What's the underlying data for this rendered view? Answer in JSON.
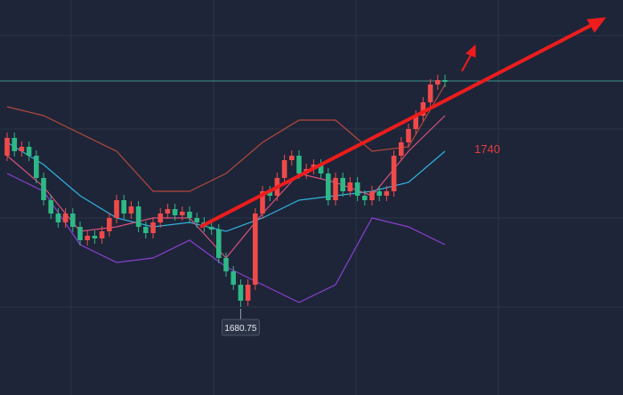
{
  "chart_data": {
    "type": "candlestick",
    "ylim": [
      1656,
      1767
    ],
    "up_color": "#ef4a4a",
    "down_color": "#2eb886",
    "ohlc": [
      [
        1723.25,
        1729.75,
        1721.75,
        1728.25
      ],
      [
        1728.25,
        1729.75,
        1723,
        1724.5
      ],
      [
        1724.5,
        1727.25,
        1723,
        1725.75
      ],
      [
        1725.75,
        1727.25,
        1721.75,
        1723.25
      ],
      [
        1723.25,
        1724.75,
        1715.5,
        1717
      ],
      [
        1717,
        1718.5,
        1709.25,
        1710.75
      ],
      [
        1710.75,
        1712.25,
        1705.5,
        1707
      ],
      [
        1707,
        1708.5,
        1703,
        1704.5
      ],
      [
        1704.5,
        1708.5,
        1703,
        1707
      ],
      [
        1707,
        1708.5,
        1701.75,
        1703.25
      ],
      [
        1703.25,
        1704.75,
        1698,
        1699.5
      ],
      [
        1699.5,
        1702.25,
        1698,
        1700.75
      ],
      [
        1700.75,
        1702.25,
        1698.5,
        1700
      ],
      [
        1700,
        1703.5,
        1698.5,
        1702
      ],
      [
        1702,
        1707.25,
        1700.5,
        1705.75
      ],
      [
        1705.75,
        1712.25,
        1704.25,
        1710.75
      ],
      [
        1710.75,
        1712.25,
        1705.5,
        1707
      ],
      [
        1707,
        1710.5,
        1705.5,
        1709
      ],
      [
        1709,
        1710.5,
        1701.75,
        1703.25
      ],
      [
        1703.25,
        1704.75,
        1700,
        1701.5
      ],
      [
        1701.5,
        1706,
        1700,
        1704.5
      ],
      [
        1704.5,
        1708.5,
        1703,
        1707
      ],
      [
        1707,
        1709.75,
        1705.5,
        1708.25
      ],
      [
        1708.25,
        1709.75,
        1705,
        1706.5
      ],
      [
        1706.5,
        1709,
        1705,
        1707.5
      ],
      [
        1707.5,
        1709,
        1704.25,
        1705.75
      ],
      [
        1705.75,
        1707.25,
        1703,
        1704.5
      ],
      [
        1704.5,
        1706,
        1701.75,
        1703.25
      ],
      [
        1703.25,
        1704.75,
        1701,
        1702.5
      ],
      [
        1702.5,
        1704,
        1693,
        1694.5
      ],
      [
        1694.5,
        1696,
        1689.25,
        1690.75
      ],
      [
        1690.75,
        1692.25,
        1685.5,
        1687
      ],
      [
        1687,
        1688.5,
        1680.75,
        1682.5
      ],
      [
        1682.5,
        1688.5,
        1681,
        1687
      ],
      [
        1687,
        1708.5,
        1685.5,
        1707
      ],
      [
        1707,
        1714.75,
        1705.5,
        1713.25
      ],
      [
        1713.25,
        1714.75,
        1710.5,
        1712
      ],
      [
        1712,
        1718.5,
        1710.5,
        1717
      ],
      [
        1717,
        1723.5,
        1715.5,
        1722
      ],
      [
        1722,
        1724.75,
        1720.5,
        1723.25
      ],
      [
        1723.25,
        1724.75,
        1716.75,
        1718.25
      ],
      [
        1718.25,
        1721,
        1716.75,
        1719.5
      ],
      [
        1719.5,
        1722.25,
        1718,
        1720.75
      ],
      [
        1720.75,
        1722.25,
        1716.75,
        1718.25
      ],
      [
        1718.25,
        1719.75,
        1709.25,
        1710.75
      ],
      [
        1710.75,
        1718.5,
        1709.25,
        1717
      ],
      [
        1717,
        1718.5,
        1711.75,
        1713.25
      ],
      [
        1713.25,
        1717.25,
        1711.75,
        1715.75
      ],
      [
        1715.75,
        1717.25,
        1710.5,
        1712
      ],
      [
        1712,
        1713.5,
        1709.25,
        1710.75
      ],
      [
        1710.75,
        1714.75,
        1709.25,
        1713.25
      ],
      [
        1713.25,
        1714.75,
        1710.5,
        1712
      ],
      [
        1712,
        1714.75,
        1710.5,
        1713.25
      ],
      [
        1713.25,
        1724.75,
        1711.75,
        1723.25
      ],
      [
        1723.25,
        1728.5,
        1721.75,
        1727
      ],
      [
        1727,
        1732.25,
        1725.5,
        1730.75
      ],
      [
        1730.75,
        1736,
        1729.25,
        1734.5
      ],
      [
        1734.5,
        1739.75,
        1733,
        1738.25
      ],
      [
        1738.25,
        1744.75,
        1736.75,
        1743.25
      ],
      [
        1743.25,
        1746,
        1741.75,
        1744.5
      ],
      [
        1744.5,
        1746,
        1742.5,
        1744
      ]
    ],
    "lines": {
      "x": [
        0,
        5,
        10,
        15,
        20,
        25,
        30,
        35,
        40,
        45,
        50,
        55,
        60
      ],
      "series": [
        {
          "color": "#b5483c",
          "values": [
            1737,
            1734.5,
            1729.5,
            1724.5,
            1713.25,
            1713.25,
            1718.25,
            1727,
            1733.25,
            1733.25,
            1724.5,
            1725.75,
            1743.25
          ]
        },
        {
          "color": "#8a3fd1",
          "values": [
            1718.25,
            1713.25,
            1698.25,
            1693.25,
            1694.5,
            1699.5,
            1692,
            1687,
            1682,
            1687,
            1705.75,
            1703.25,
            1698.25
          ]
        },
        {
          "color": "#2fb4e0",
          "values": [
            1727,
            1720.75,
            1712,
            1705.75,
            1703.25,
            1704.5,
            1702,
            1705.75,
            1710.75,
            1712,
            1713.25,
            1715.75,
            1724.5
          ]
        },
        {
          "color": "#d9507f",
          "values": [
            1723.25,
            1714.5,
            1702,
            1703.25,
            1705.75,
            1705.75,
            1694.5,
            1707,
            1718.25,
            1715.75,
            1712,
            1724.5,
            1734.5
          ]
        }
      ]
    },
    "price_line": 1744.25,
    "low_label": "1680.75",
    "target_label": "1740"
  }
}
